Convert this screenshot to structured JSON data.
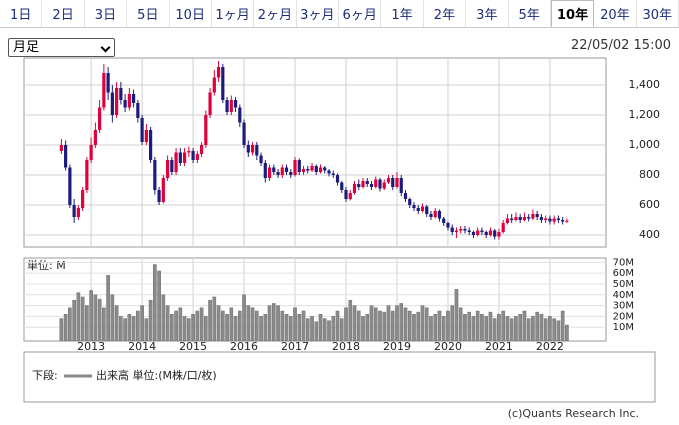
{
  "tabs": [
    {
      "label": "1日"
    },
    {
      "label": "2日"
    },
    {
      "label": "3日"
    },
    {
      "label": "5日"
    },
    {
      "label": "10日"
    },
    {
      "label": "1ヶ月"
    },
    {
      "label": "2ヶ月"
    },
    {
      "label": "3ヶ月"
    },
    {
      "label": "6ヶ月"
    },
    {
      "label": "1年"
    },
    {
      "label": "2年"
    },
    {
      "label": "3年"
    },
    {
      "label": "5年"
    },
    {
      "label": "10年",
      "selected": true
    },
    {
      "label": "20年"
    },
    {
      "label": "30年"
    }
  ],
  "period_select": "月足",
  "timestamp": "22/05/02 15:00",
  "chart_data": {
    "type": "candlestick",
    "up_color": "#e0003c",
    "down_color": "#1c1c7c",
    "grid": true,
    "xlim": [
      -8.8,
      128.2
    ],
    "xticks": [
      {
        "value": 7,
        "label": "2013"
      },
      {
        "value": 19,
        "label": "2014"
      },
      {
        "value": 31,
        "label": "2015"
      },
      {
        "value": 43,
        "label": "2016"
      },
      {
        "value": 55,
        "label": "2017"
      },
      {
        "value": 67,
        "label": "2018"
      },
      {
        "value": 79,
        "label": "2019"
      },
      {
        "value": 91,
        "label": "2020"
      },
      {
        "value": 103,
        "label": "2021"
      },
      {
        "value": 115,
        "label": "2022"
      }
    ],
    "ylim": [
      320,
      1580
    ],
    "yticks": [
      400,
      600,
      800,
      {
        "value": 1000,
        "label": "1,000"
      },
      {
        "value": 1200,
        "label": "1,200"
      },
      {
        "value": 1400,
        "label": "1,400"
      }
    ],
    "open": [
      960,
      1000,
      850,
      600,
      520,
      580,
      700,
      900,
      1000,
      1100,
      1250,
      1480,
      1350,
      1200,
      1380,
      1300,
      1250,
      1340,
      1280,
      1180,
      1020,
      1100,
      900,
      700,
      620,
      780,
      900,
      820,
      950,
      880,
      950,
      960,
      900,
      940,
      1000,
      1200,
      1350,
      1450,
      1520,
      1300,
      1220,
      1300,
      1250,
      1150,
      1000,
      950,
      1000,
      930,
      880,
      780,
      850,
      820,
      800,
      850,
      820,
      800,
      900,
      820,
      840,
      830,
      860,
      820,
      850,
      830,
      810,
      800,
      750,
      700,
      640,
      680,
      740,
      720,
      760,
      740,
      720,
      770,
      710,
      750,
      780,
      720,
      780,
      680,
      640,
      600,
      580,
      560,
      590,
      540,
      520,
      560,
      510,
      480,
      450,
      420,
      430,
      440,
      430,
      420,
      400,
      430,
      420,
      400,
      430,
      390,
      420,
      480,
      510,
      500,
      520,
      500,
      520,
      510,
      540,
      520,
      500,
      510,
      490,
      510,
      500,
      490
    ],
    "high": [
      1040,
      1030,
      870,
      640,
      600,
      720,
      920,
      1050,
      1150,
      1300,
      1540,
      1520,
      1400,
      1420,
      1420,
      1340,
      1380,
      1370,
      1300,
      1200,
      1140,
      1120,
      920,
      720,
      800,
      930,
      920,
      980,
      980,
      980,
      990,
      980,
      960,
      1020,
      1230,
      1380,
      1500,
      1560,
      1540,
      1320,
      1330,
      1320,
      1270,
      1170,
      1030,
      1020,
      1020,
      950,
      900,
      870,
      870,
      840,
      870,
      870,
      840,
      920,
      910,
      860,
      860,
      880,
      870,
      870,
      860,
      840,
      830,
      810,
      760,
      720,
      700,
      760,
      770,
      780,
      780,
      760,
      790,
      780,
      770,
      800,
      800,
      820,
      800,
      700,
      650,
      620,
      600,
      610,
      600,
      560,
      580,
      570,
      520,
      490,
      470,
      450,
      460,
      460,
      450,
      430,
      450,
      450,
      430,
      450,
      440,
      440,
      500,
      540,
      540,
      550,
      540,
      550,
      540,
      570,
      560,
      540,
      530,
      530,
      530,
      530,
      520,
      510
    ],
    "low": [
      940,
      830,
      580,
      480,
      500,
      560,
      680,
      880,
      980,
      1080,
      1230,
      1300,
      1150,
      1180,
      1270,
      1220,
      1230,
      1250,
      1150,
      1000,
      1000,
      880,
      670,
      600,
      610,
      760,
      800,
      800,
      860,
      860,
      920,
      880,
      880,
      920,
      980,
      1180,
      1330,
      1420,
      1280,
      1200,
      1200,
      1220,
      1120,
      980,
      920,
      930,
      900,
      860,
      750,
      760,
      800,
      780,
      780,
      800,
      780,
      790,
      800,
      800,
      810,
      820,
      800,
      810,
      810,
      790,
      780,
      730,
      680,
      620,
      630,
      670,
      700,
      710,
      720,
      700,
      710,
      690,
      700,
      740,
      700,
      710,
      660,
      620,
      580,
      560,
      540,
      550,
      520,
      500,
      510,
      490,
      460,
      430,
      400,
      380,
      410,
      410,
      400,
      380,
      390,
      400,
      380,
      390,
      370,
      370,
      410,
      470,
      480,
      490,
      480,
      490,
      490,
      500,
      500,
      480,
      480,
      470,
      470,
      480,
      470,
      480
    ],
    "close": [
      1000,
      850,
      600,
      520,
      580,
      700,
      900,
      1000,
      1100,
      1250,
      1480,
      1350,
      1200,
      1380,
      1300,
      1250,
      1340,
      1280,
      1180,
      1020,
      1100,
      900,
      700,
      620,
      780,
      900,
      820,
      950,
      880,
      950,
      960,
      900,
      940,
      1000,
      1200,
      1350,
      1450,
      1520,
      1300,
      1220,
      1300,
      1250,
      1150,
      1000,
      950,
      1000,
      930,
      880,
      780,
      850,
      820,
      800,
      850,
      820,
      800,
      900,
      820,
      840,
      830,
      860,
      820,
      850,
      830,
      810,
      800,
      750,
      700,
      640,
      680,
      740,
      720,
      760,
      740,
      720,
      770,
      710,
      750,
      780,
      720,
      780,
      680,
      640,
      600,
      580,
      560,
      590,
      540,
      520,
      560,
      510,
      480,
      450,
      420,
      430,
      440,
      430,
      420,
      400,
      430,
      420,
      400,
      430,
      390,
      420,
      480,
      510,
      500,
      520,
      500,
      520,
      510,
      540,
      520,
      500,
      510,
      490,
      510,
      500,
      490,
      495
    ],
    "volume": {
      "label": "単位: M",
      "color": "#8a8a8a",
      "ylim": [
        0,
        74
      ],
      "yticks": [
        {
          "value": 10,
          "label": "10M"
        },
        {
          "value": 20,
          "label": "20M"
        },
        {
          "value": 30,
          "label": "30M"
        },
        {
          "value": 40,
          "label": "40M"
        },
        {
          "value": 50,
          "label": "50M"
        },
        {
          "value": 60,
          "label": "60M"
        },
        {
          "value": 70,
          "label": "70M"
        }
      ],
      "values": [
        18,
        22,
        28,
        35,
        42,
        38,
        30,
        44,
        40,
        36,
        28,
        58,
        40,
        30,
        20,
        18,
        22,
        20,
        25,
        30,
        18,
        35,
        68,
        62,
        40,
        30,
        22,
        25,
        28,
        20,
        18,
        22,
        25,
        28,
        20,
        35,
        38,
        30,
        25,
        22,
        28,
        20,
        25,
        40,
        30,
        28,
        25,
        20,
        22,
        30,
        32,
        30,
        25,
        22,
        20,
        28,
        22,
        25,
        18,
        20,
        15,
        22,
        18,
        16,
        20,
        25,
        18,
        28,
        35,
        30,
        25,
        20,
        22,
        30,
        28,
        25,
        24,
        30,
        25,
        30,
        32,
        28,
        25,
        22,
        24,
        30,
        28,
        20,
        22,
        25,
        20,
        25,
        30,
        45,
        28,
        22,
        24,
        20,
        25,
        22,
        20,
        24,
        18,
        22,
        25,
        20,
        18,
        20,
        22,
        25,
        18,
        20,
        24,
        22,
        18,
        20,
        18,
        16,
        25,
        12
      ]
    },
    "legend": {
      "prefix": "下段:",
      "label": "出来高 単位:(M株/口/枚)"
    }
  },
  "footer": "(c)Quants Research Inc."
}
